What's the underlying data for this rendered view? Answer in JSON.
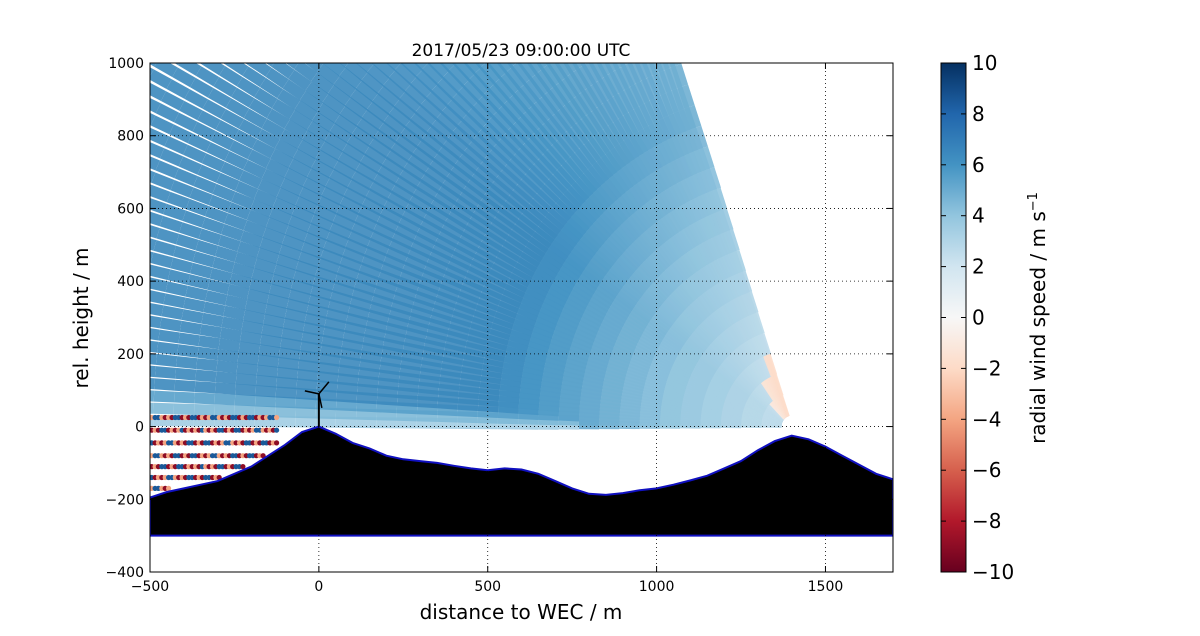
{
  "chart_data": {
    "type": "heatmap",
    "title": "2017/05/23 09:00:00 UTC",
    "xlabel": "distance to WEC / m",
    "ylabel": "rel. height / m",
    "xlim": [
      -500,
      1700
    ],
    "ylim": [
      -400,
      1000
    ],
    "xticks": [
      -500,
      0,
      500,
      1000,
      1500
    ],
    "yticks": [
      -400,
      -200,
      0,
      200,
      400,
      600,
      800,
      1000
    ],
    "grid": "dotted",
    "colorbar": {
      "label": "radial wind speed / m s",
      "label_exponent": "−1",
      "range": [
        -10,
        10
      ],
      "ticks": [
        "10",
        "8",
        "6",
        "4",
        "2",
        "0",
        "−2",
        "−4",
        "−6",
        "−8",
        "−10"
      ],
      "colormap": "RdBu",
      "colors": [
        "#67001f",
        "#b2182b",
        "#d6604d",
        "#f4a582",
        "#fddbc7",
        "#f7f7f7",
        "#d1e5f0",
        "#92c5de",
        "#4393c3",
        "#2166ac",
        "#053061"
      ]
    },
    "lidar": {
      "origin": [
        1400,
        0
      ],
      "elevation_min_deg": 0.5,
      "elevation_max_deg": 71,
      "typical_speed": 6.5
    },
    "terrain": [
      [
        -500,
        -195
      ],
      [
        -450,
        -180
      ],
      [
        -400,
        -170
      ],
      [
        -350,
        -160
      ],
      [
        -300,
        -150
      ],
      [
        -250,
        -130
      ],
      [
        -200,
        -110
      ],
      [
        -150,
        -80
      ],
      [
        -100,
        -50
      ],
      [
        -50,
        -15
      ],
      [
        0,
        0
      ],
      [
        50,
        -20
      ],
      [
        100,
        -45
      ],
      [
        150,
        -60
      ],
      [
        200,
        -80
      ],
      [
        250,
        -90
      ],
      [
        300,
        -95
      ],
      [
        350,
        -100
      ],
      [
        400,
        -108
      ],
      [
        450,
        -115
      ],
      [
        500,
        -120
      ],
      [
        550,
        -115
      ],
      [
        600,
        -118
      ],
      [
        650,
        -130
      ],
      [
        700,
        -150
      ],
      [
        750,
        -170
      ],
      [
        800,
        -185
      ],
      [
        850,
        -188
      ],
      [
        900,
        -183
      ],
      [
        950,
        -175
      ],
      [
        1000,
        -170
      ],
      [
        1050,
        -160
      ],
      [
        1100,
        -148
      ],
      [
        1150,
        -135
      ],
      [
        1200,
        -115
      ],
      [
        1250,
        -95
      ],
      [
        1300,
        -65
      ],
      [
        1350,
        -40
      ],
      [
        1400,
        -25
      ],
      [
        1450,
        -35
      ],
      [
        1500,
        -55
      ],
      [
        1550,
        -80
      ],
      [
        1600,
        -105
      ],
      [
        1650,
        -130
      ],
      [
        1700,
        -145
      ]
    ],
    "terrain_base": -300,
    "wec": {
      "x": 0,
      "hub_height": 90
    }
  }
}
